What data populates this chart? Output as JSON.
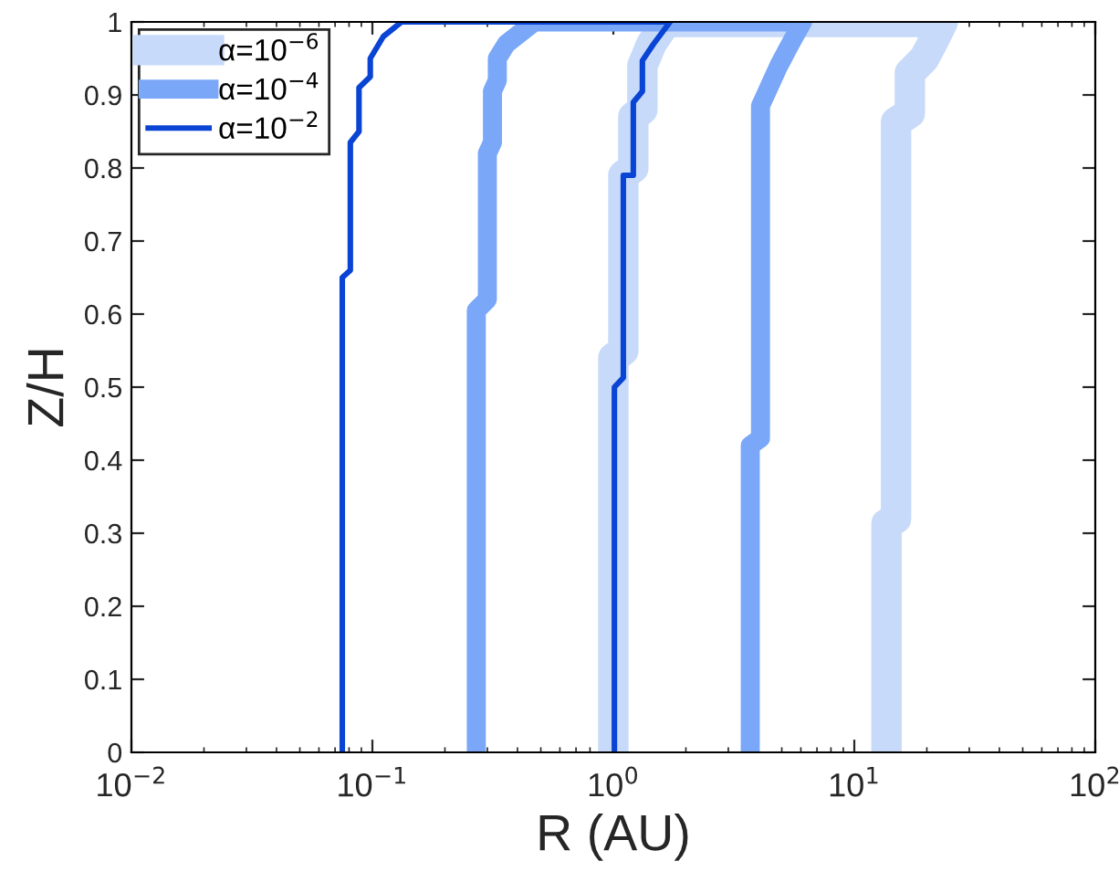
{
  "chart_data": {
    "type": "line",
    "xlabel": "R (AU)",
    "ylabel": "Z/H",
    "log": "x",
    "xlim": [
      0.01,
      100
    ],
    "ylim": [
      0,
      1
    ],
    "xticks": [
      {
        "value": 0.01,
        "label": "10$^{−2}$"
      },
      {
        "value": 0.1,
        "label": "10$^{−1}$"
      },
      {
        "value": 1,
        "label": "10$^{0}$"
      },
      {
        "value": 10,
        "label": "10$^{1}$"
      },
      {
        "value": 100,
        "label": "10$^{2}$"
      }
    ],
    "yticks": [
      0,
      0.1,
      0.2,
      0.3,
      0.4,
      0.5,
      0.6,
      0.7,
      0.8,
      0.9,
      1
    ],
    "grid": false,
    "legend": "top left",
    "line_style": "solid",
    "marker": "none",
    "series": [
      {
        "name": "α=10$^{−6}$",
        "color": "#c8daf9",
        "x": [
          1.0,
          1.0,
          1.1,
          1.1,
          1.21,
          1.21,
          1.32,
          1.32,
          1.44,
          1.66,
          23.3,
          21,
          19.5,
          17,
          17,
          14.9,
          14.9,
          13.6,
          13.6
        ],
        "values": [
          0,
          0.54,
          0.55,
          0.79,
          0.8,
          0.87,
          0.88,
          0.94,
          0.97,
          1.0,
          1.0,
          0.97,
          0.95,
          0.93,
          0.875,
          0.863,
          0.32,
          0.313,
          0
        ]
      },
      {
        "name": "α=10$^{−4}$",
        "color": "#7aa7f7",
        "x": [
          0.27,
          0.27,
          0.3,
          0.3,
          0.315,
          0.315,
          0.33,
          0.33,
          0.36,
          0.47,
          6.1,
          5.43,
          4.86,
          4.08,
          4.08,
          3.7,
          3.7
        ],
        "values": [
          0,
          0.605,
          0.62,
          0.82,
          0.835,
          0.905,
          0.92,
          0.95,
          0.97,
          1.0,
          1.0,
          0.97,
          0.94,
          0.885,
          0.43,
          0.42,
          0
        ]
      },
      {
        "name": "α=10$^{−2}$",
        "color": "#0a44d4",
        "x": [
          0.075,
          0.075,
          0.081,
          0.081,
          0.088,
          0.088,
          0.098,
          0.098,
          0.111,
          0.132,
          1.72,
          1.47,
          1.32,
          1.32,
          1.21,
          1.21,
          1.1,
          1.1,
          1.01,
          1.01
        ],
        "values": [
          0,
          0.65,
          0.66,
          0.835,
          0.85,
          0.91,
          0.925,
          0.95,
          0.98,
          1.0,
          1.0,
          0.97,
          0.947,
          0.905,
          0.89,
          0.79,
          0.79,
          0.513,
          0.5,
          0
        ]
      }
    ]
  }
}
